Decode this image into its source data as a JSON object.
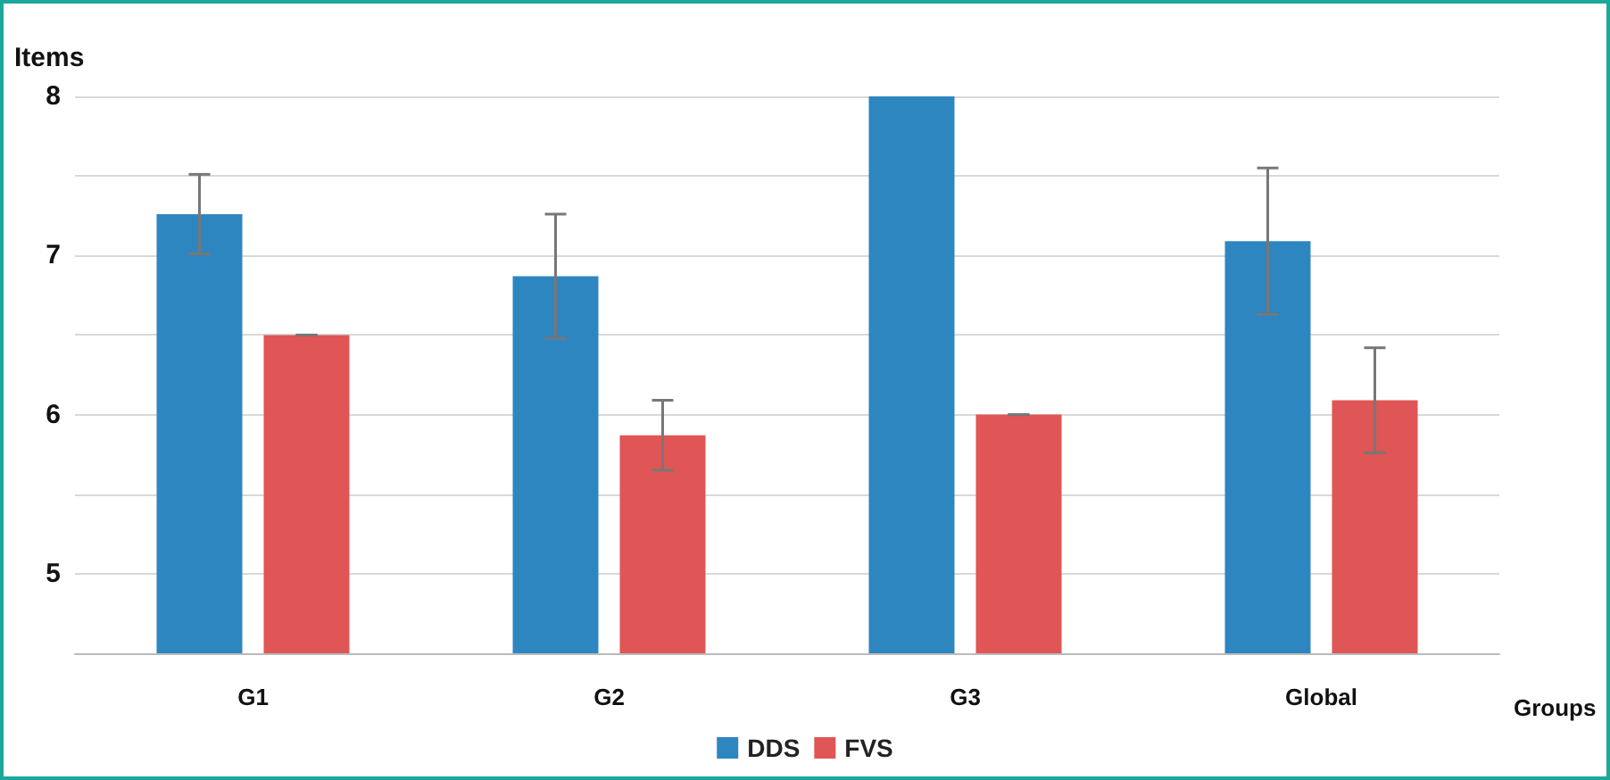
{
  "chart_data": {
    "type": "bar",
    "ylabel": "Items",
    "xlabel": "Groups",
    "categories": [
      "G1",
      "G2",
      "G3",
      "Global"
    ],
    "series": [
      {
        "name": "DDS",
        "color": "#2e86c1",
        "values": [
          7.26,
          6.87,
          8.0,
          7.09
        ],
        "errors": [
          0.25,
          0.39,
          null,
          0.46
        ]
      },
      {
        "name": "FVS",
        "color": "#e05555",
        "values": [
          6.5,
          5.87,
          6.0,
          6.09
        ],
        "errors": [
          0,
          0.22,
          0,
          0.33
        ]
      }
    ],
    "ylim": [
      4.5,
      8
    ],
    "yticks": [
      {
        "value": 4.5,
        "label": null
      },
      5,
      {
        "value": 5.5,
        "label": null
      },
      6,
      {
        "value": 6.5,
        "label": null
      },
      7,
      {
        "value": 7.5,
        "label": null
      },
      8
    ],
    "grid": "y",
    "legend": "bottom"
  }
}
